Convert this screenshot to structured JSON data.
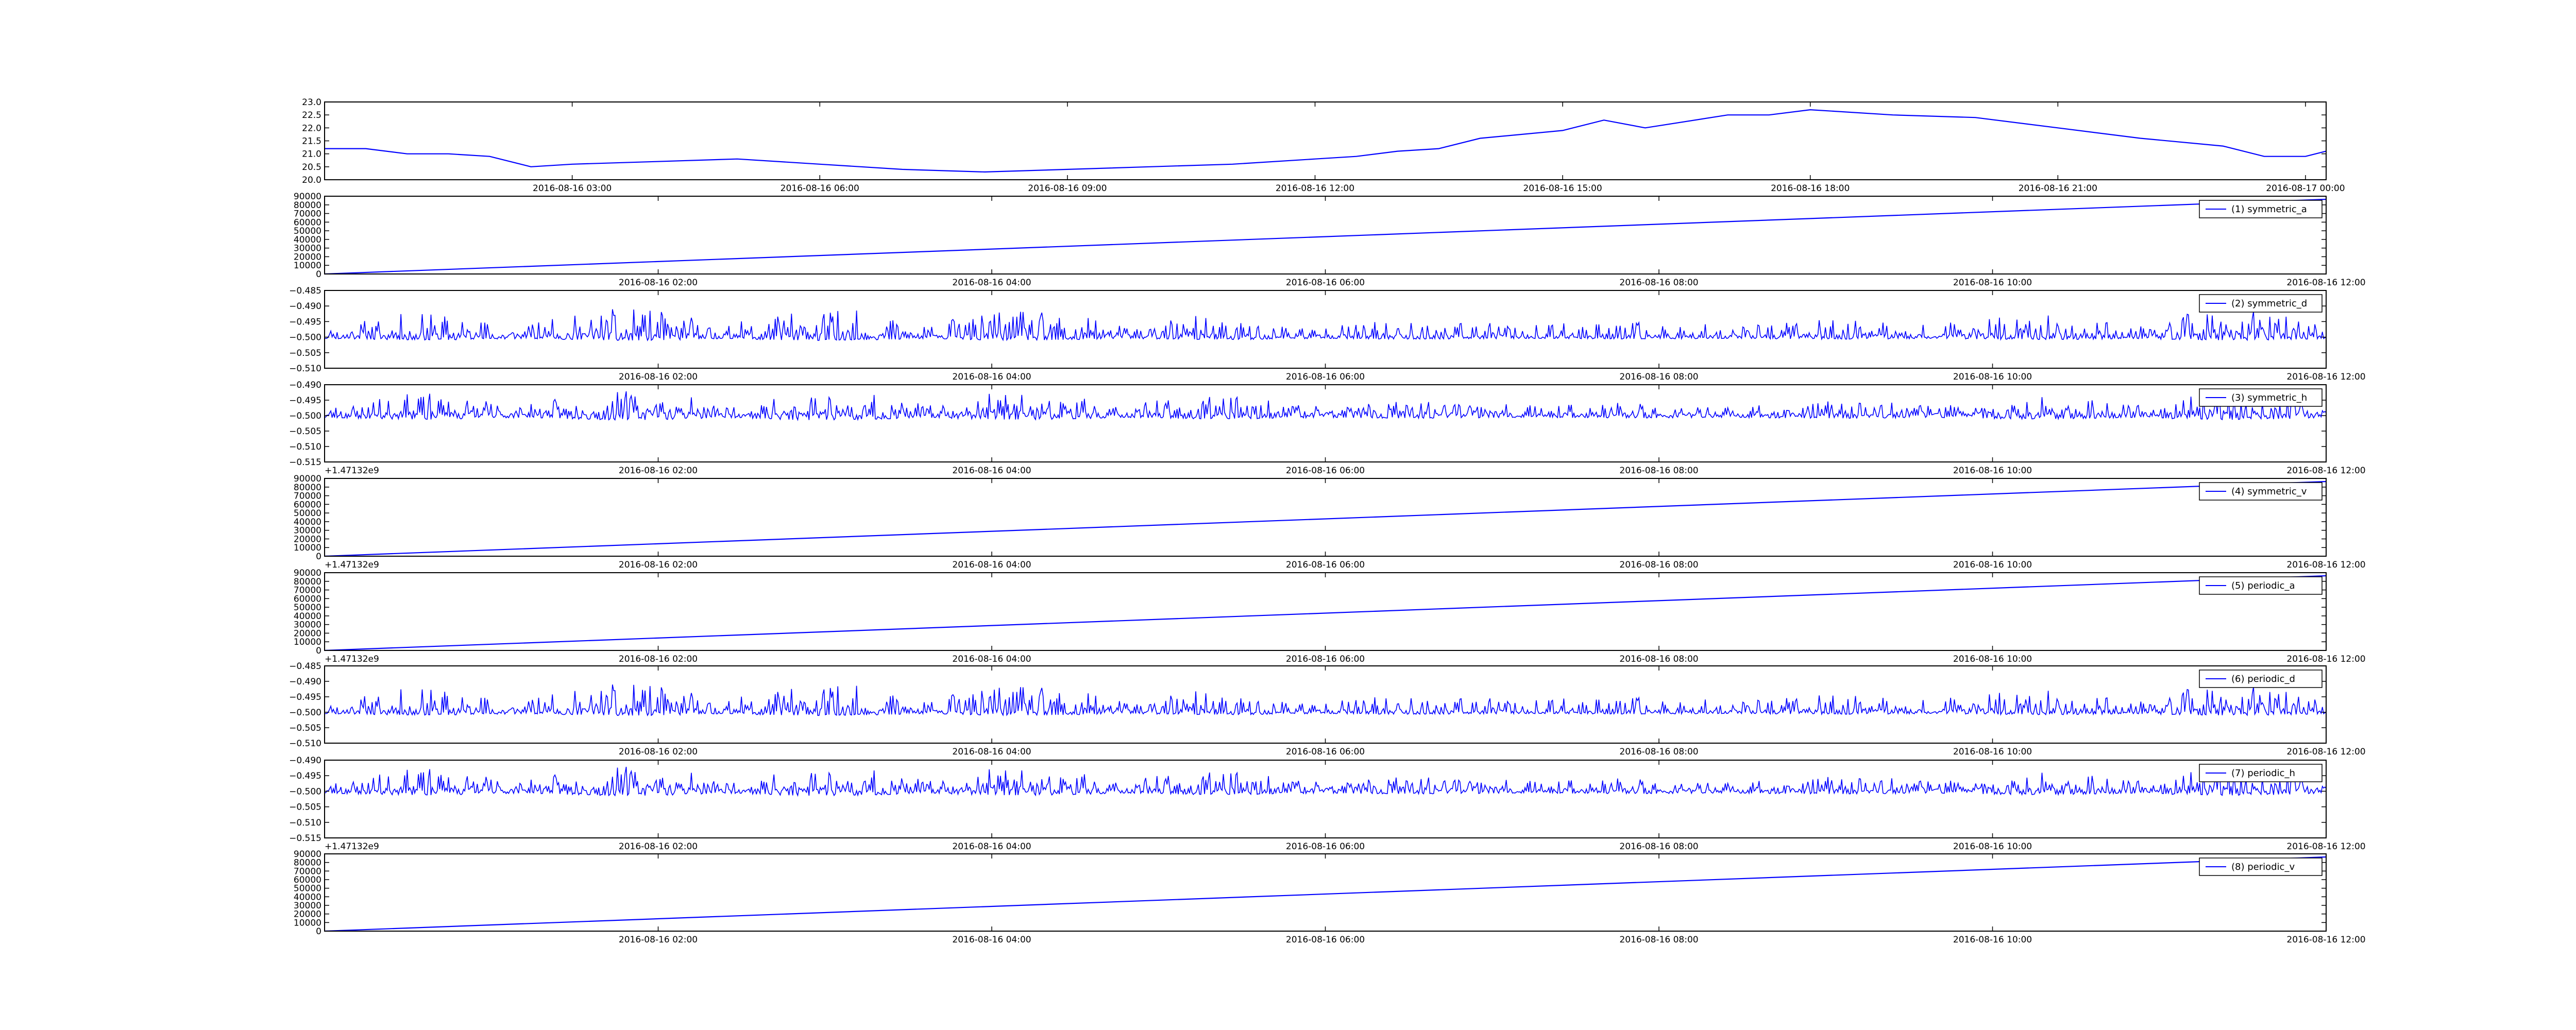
{
  "figure": {
    "line_color": "#0000ff",
    "frame_color": "#000000",
    "background": "#ffffff"
  },
  "chart_data": [
    {
      "type": "line",
      "id": "temperature",
      "x_axis": "datetime",
      "xlim": [
        "2016-08-16 00:00",
        "2016-08-17 00:15"
      ],
      "ylim": [
        20.0,
        23.0
      ],
      "yticks": [
        "20.0",
        "20.5",
        "21.0",
        "21.5",
        "22.0",
        "22.5",
        "23.0"
      ],
      "xtick_labels": [
        "2016-08-16 03:00",
        "2016-08-16 06:00",
        "2016-08-16 09:00",
        "2016-08-16 12:00",
        "2016-08-16 15:00",
        "2016-08-16 18:00",
        "2016-08-16 21:00",
        "2016-08-17 00:00"
      ],
      "offset_label": "",
      "legend": null,
      "x": [
        "2016-08-16 00:00",
        "2016-08-16 00:30",
        "2016-08-16 01:00",
        "2016-08-16 01:30",
        "2016-08-16 02:00",
        "2016-08-16 02:30",
        "2016-08-16 03:00",
        "2016-08-16 04:00",
        "2016-08-16 05:00",
        "2016-08-16 06:00",
        "2016-08-16 07:00",
        "2016-08-16 08:00",
        "2016-08-16 09:00",
        "2016-08-16 10:00",
        "2016-08-16 11:00",
        "2016-08-16 12:00",
        "2016-08-16 12:30",
        "2016-08-16 13:00",
        "2016-08-16 13:30",
        "2016-08-16 14:00",
        "2016-08-16 15:00",
        "2016-08-16 15:30",
        "2016-08-16 16:00",
        "2016-08-16 17:00",
        "2016-08-16 17:30",
        "2016-08-16 18:00",
        "2016-08-16 19:00",
        "2016-08-16 20:00",
        "2016-08-16 21:00",
        "2016-08-16 22:00",
        "2016-08-16 23:00",
        "2016-08-16 23:30",
        "2016-08-17 00:00",
        "2016-08-17 00:15"
      ],
      "values": [
        21.2,
        21.2,
        21.0,
        21.0,
        20.9,
        20.5,
        20.6,
        20.7,
        20.8,
        20.6,
        20.4,
        20.3,
        20.4,
        20.5,
        20.6,
        20.8,
        20.9,
        21.1,
        21.2,
        21.6,
        21.9,
        22.3,
        22.0,
        22.5,
        22.5,
        22.7,
        22.5,
        22.4,
        22.0,
        21.6,
        21.3,
        20.9,
        20.9,
        21.1
      ]
    },
    {
      "type": "line",
      "id": "symmetric_a",
      "x_axis": "datetime",
      "xlim": [
        "2016-08-16 00:00",
        "2016-08-16 12:00"
      ],
      "ylim": [
        0,
        90000
      ],
      "yticks": [
        "0",
        "10000",
        "20000",
        "30000",
        "40000",
        "50000",
        "60000",
        "70000",
        "80000",
        "90000"
      ],
      "xtick_labels": [
        "2016-08-16 02:00",
        "2016-08-16 04:00",
        "2016-08-16 06:00",
        "2016-08-16 08:00",
        "2016-08-16 10:00",
        "2016-08-16 12:00"
      ],
      "offset_label": "",
      "legend": "(1) symmetric_a",
      "pattern": "ramp",
      "x": [
        "2016-08-16 00:00",
        "2016-08-16 12:00"
      ],
      "values": [
        0,
        86400
      ]
    },
    {
      "type": "line",
      "id": "symmetric_d",
      "x_axis": "datetime",
      "xlim": [
        "2016-08-16 00:00",
        "2016-08-16 12:00"
      ],
      "ylim": [
        -0.51,
        -0.485
      ],
      "yticks": [
        "−0.510",
        "−0.505",
        "−0.500",
        "−0.495",
        "−0.490",
        "−0.485"
      ],
      "xtick_labels": [
        "2016-08-16 02:00",
        "2016-08-16 04:00",
        "2016-08-16 06:00",
        "2016-08-16 08:00",
        "2016-08-16 10:00",
        "2016-08-16 12:00"
      ],
      "offset_label": "",
      "legend": "(2) symmetric_d",
      "pattern": "noise",
      "baseline": -0.5,
      "range": [
        -0.5085,
        -0.4905
      ],
      "seed": 11
    },
    {
      "type": "line",
      "id": "symmetric_h",
      "x_axis": "datetime",
      "xlim": [
        "2016-08-16 00:00",
        "2016-08-16 12:00"
      ],
      "ylim": [
        -0.515,
        -0.49
      ],
      "yticks": [
        "−0.515",
        "−0.510",
        "−0.505",
        "−0.500",
        "−0.495",
        "−0.490"
      ],
      "xtick_labels": [
        "2016-08-16 02:00",
        "2016-08-16 04:00",
        "2016-08-16 06:00",
        "2016-08-16 08:00",
        "2016-08-16 10:00",
        "2016-08-16 12:00"
      ],
      "offset_label": "+1.47132e9",
      "legend": "(3) symmetric_h",
      "pattern": "noise",
      "baseline": -0.5,
      "range": [
        -0.5115,
        -0.4915
      ],
      "seed": 23
    },
    {
      "type": "line",
      "id": "symmetric_v",
      "x_axis": "datetime",
      "xlim": [
        "2016-08-16 00:00",
        "2016-08-16 12:00"
      ],
      "ylim": [
        0,
        90000
      ],
      "yticks": [
        "0",
        "10000",
        "20000",
        "30000",
        "40000",
        "50000",
        "60000",
        "70000",
        "80000",
        "90000"
      ],
      "xtick_labels": [
        "2016-08-16 02:00",
        "2016-08-16 04:00",
        "2016-08-16 06:00",
        "2016-08-16 08:00",
        "2016-08-16 10:00",
        "2016-08-16 12:00"
      ],
      "offset_label": "+1.47132e9",
      "legend": "(4) symmetric_v",
      "pattern": "ramp",
      "x": [
        "2016-08-16 00:00",
        "2016-08-16 12:00"
      ],
      "values": [
        0,
        86400
      ]
    },
    {
      "type": "line",
      "id": "periodic_a",
      "x_axis": "datetime",
      "xlim": [
        "2016-08-16 00:00",
        "2016-08-16 12:00"
      ],
      "ylim": [
        0,
        90000
      ],
      "yticks": [
        "0",
        "10000",
        "20000",
        "30000",
        "40000",
        "50000",
        "60000",
        "70000",
        "80000",
        "90000"
      ],
      "xtick_labels": [
        "2016-08-16 02:00",
        "2016-08-16 04:00",
        "2016-08-16 06:00",
        "2016-08-16 08:00",
        "2016-08-16 10:00",
        "2016-08-16 12:00"
      ],
      "offset_label": "+1.47132e9",
      "legend": "(5) periodic_a",
      "pattern": "ramp",
      "x": [
        "2016-08-16 00:00",
        "2016-08-16 12:00"
      ],
      "values": [
        0,
        86400
      ]
    },
    {
      "type": "line",
      "id": "periodic_d",
      "x_axis": "datetime",
      "xlim": [
        "2016-08-16 00:00",
        "2016-08-16 12:00"
      ],
      "ylim": [
        -0.51,
        -0.485
      ],
      "yticks": [
        "−0.510",
        "−0.505",
        "−0.500",
        "−0.495",
        "−0.490",
        "−0.485"
      ],
      "xtick_labels": [
        "2016-08-16 02:00",
        "2016-08-16 04:00",
        "2016-08-16 06:00",
        "2016-08-16 08:00",
        "2016-08-16 10:00",
        "2016-08-16 12:00"
      ],
      "offset_label": "",
      "legend": "(6) periodic_d",
      "pattern": "noise",
      "baseline": -0.5,
      "range": [
        -0.5085,
        -0.4905
      ],
      "seed": 11
    },
    {
      "type": "line",
      "id": "periodic_h",
      "x_axis": "datetime",
      "xlim": [
        "2016-08-16 00:00",
        "2016-08-16 12:00"
      ],
      "ylim": [
        -0.515,
        -0.49
      ],
      "yticks": [
        "−0.515",
        "−0.510",
        "−0.505",
        "−0.500",
        "−0.495",
        "−0.490"
      ],
      "xtick_labels": [
        "2016-08-16 02:00",
        "2016-08-16 04:00",
        "2016-08-16 06:00",
        "2016-08-16 08:00",
        "2016-08-16 10:00",
        "2016-08-16 12:00"
      ],
      "offset_label": "+1.47132e9",
      "legend": "(7) periodic_h",
      "pattern": "noise",
      "baseline": -0.5,
      "range": [
        -0.5115,
        -0.4915
      ],
      "seed": 23
    },
    {
      "type": "line",
      "id": "periodic_v",
      "x_axis": "datetime",
      "xlim": [
        "2016-08-16 00:00",
        "2016-08-16 12:00"
      ],
      "ylim": [
        0,
        90000
      ],
      "yticks": [
        "0",
        "10000",
        "20000",
        "30000",
        "40000",
        "50000",
        "60000",
        "70000",
        "80000",
        "90000"
      ],
      "xtick_labels": [
        "2016-08-16 02:00",
        "2016-08-16 04:00",
        "2016-08-16 06:00",
        "2016-08-16 08:00",
        "2016-08-16 10:00",
        "2016-08-16 12:00"
      ],
      "offset_label": "",
      "legend": "(8) periodic_v",
      "pattern": "ramp",
      "x": [
        "2016-08-16 00:00",
        "2016-08-16 12:00"
      ],
      "values": [
        0,
        86400
      ]
    }
  ]
}
